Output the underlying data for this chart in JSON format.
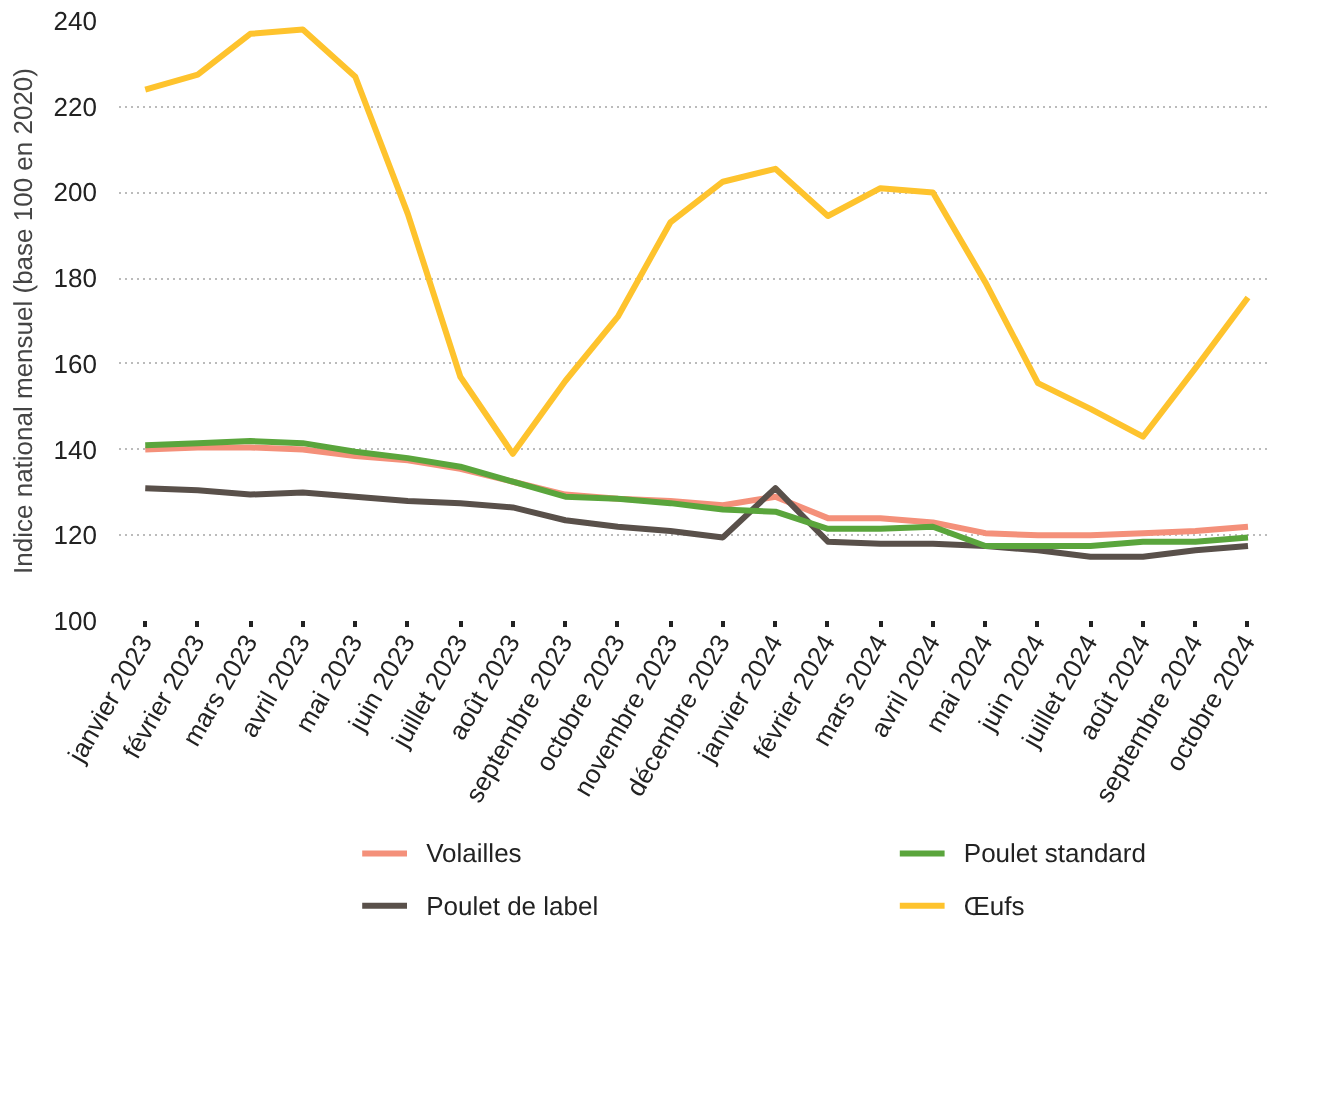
{
  "chart_data": {
    "type": "line",
    "ylabel": "Indice national mensuel (base 100 en 2020)",
    "categories": [
      "janvier 2023",
      "février 2023",
      "mars 2023",
      "avril 2023",
      "mai 2023",
      "juin 2023",
      "juillet 2023",
      "août 2023",
      "septembre 2023",
      "octobre 2023",
      "novembre 2023",
      "décembre 2023",
      "janvier 2024",
      "février 2024",
      "mars 2024",
      "avril 2024",
      "mai 2024",
      "juin 2024",
      "juillet 2024",
      "août 2024",
      "septembre 2024",
      "octobre 2024"
    ],
    "series": [
      {
        "name": "Volailles",
        "color": "#f4907a",
        "values": [
          140,
          140.5,
          140.5,
          140,
          138.5,
          137.5,
          135.5,
          132.5,
          129.5,
          128.5,
          128,
          127,
          129,
          124,
          124,
          123,
          120.5,
          120,
          120,
          120.5,
          121,
          122
        ]
      },
      {
        "name": "Poulet de label",
        "color": "#59504a",
        "values": [
          131,
          130.5,
          129.5,
          130,
          129,
          128,
          127.5,
          126.5,
          123.5,
          122,
          121,
          119.5,
          131,
          118.5,
          118,
          118,
          117.5,
          116.5,
          115,
          115,
          116.5,
          117.5
        ]
      },
      {
        "name": "Poulet standard",
        "color": "#5aa53c",
        "values": [
          141,
          141.5,
          142,
          141.5,
          139.5,
          138,
          136,
          132.5,
          129,
          128.5,
          127.5,
          126,
          125.5,
          121.5,
          121.5,
          122,
          117.5,
          117.5,
          117.5,
          118.5,
          118.5,
          119.5
        ]
      },
      {
        "name": "Œufs",
        "color": "#fec32d",
        "values": [
          224,
          227.5,
          237,
          238,
          227,
          195,
          157,
          139,
          156,
          171,
          193,
          202.5,
          205.5,
          194.5,
          201,
          200,
          179,
          155.5,
          149.5,
          143,
          159,
          175.5
        ]
      }
    ],
    "ylim": [
      100,
      240
    ],
    "yticks": [
      100,
      120,
      140,
      160,
      180,
      200,
      220,
      240
    ],
    "grid": "y",
    "legend": "bottom",
    "line_style": "solid"
  }
}
